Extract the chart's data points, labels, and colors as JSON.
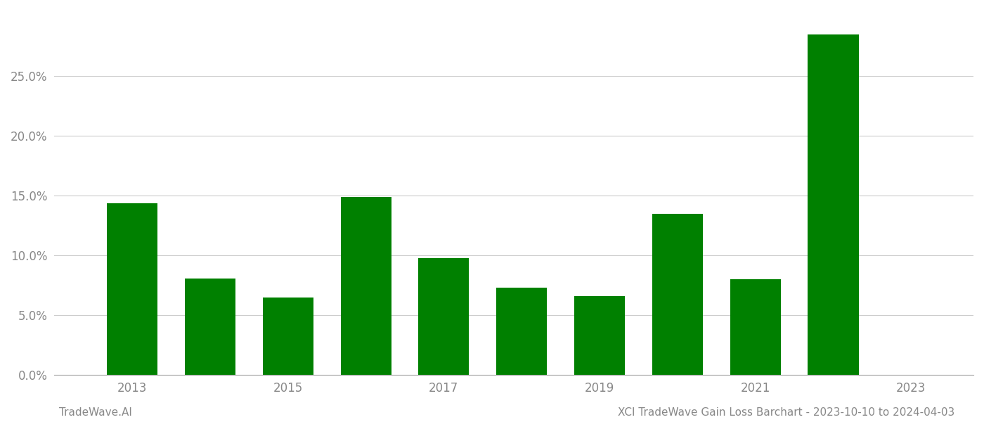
{
  "years": [
    2013,
    2014,
    2015,
    2016,
    2017,
    2018,
    2019,
    2020,
    2021,
    2022
  ],
  "values": [
    0.144,
    0.081,
    0.065,
    0.149,
    0.098,
    0.073,
    0.066,
    0.135,
    0.08,
    0.285
  ],
  "bar_color": "#008000",
  "ylim": [
    0.0,
    0.305
  ],
  "yticks": [
    0.0,
    0.05,
    0.1,
    0.15,
    0.2,
    0.25
  ],
  "xtick_labels": [
    "2013",
    "2015",
    "2017",
    "2019",
    "2021",
    "2023"
  ],
  "xtick_positions": [
    2013,
    2015,
    2017,
    2019,
    2021,
    2023
  ],
  "xlim": [
    2012.0,
    2023.8
  ],
  "grid_color": "#cccccc",
  "background_color": "#ffffff",
  "footer_left": "TradeWave.AI",
  "footer_right": "XCI TradeWave Gain Loss Barchart - 2023-10-10 to 2024-04-03",
  "footer_color": "#888888",
  "footer_fontsize": 11,
  "bar_width": 0.65,
  "figsize": [
    14.0,
    6.0
  ],
  "dpi": 100
}
